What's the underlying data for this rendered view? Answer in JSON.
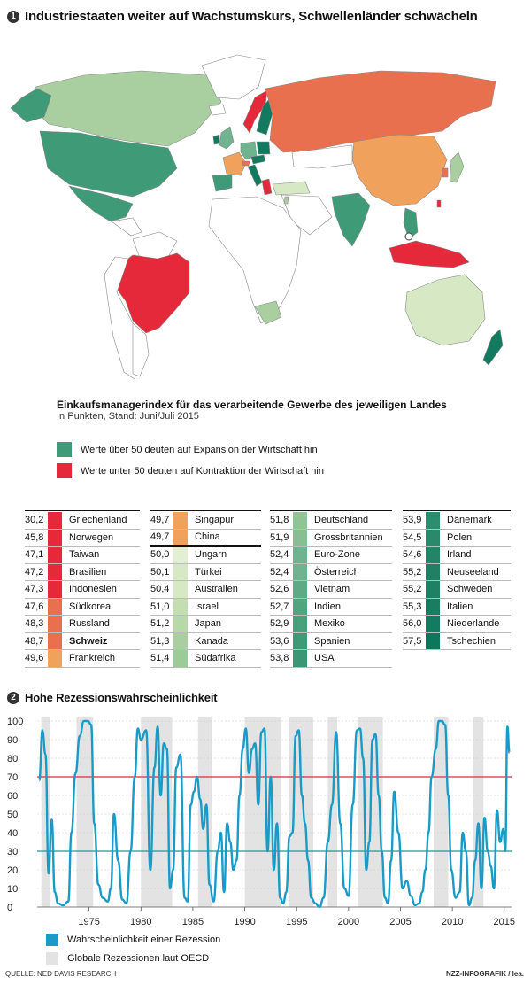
{
  "section1": {
    "number": "1",
    "title": "Industriestaaten weiter auf Wachstumskurs, Schwellenländer schwächeln"
  },
  "map": {
    "colors": {
      "red": "#e5283a",
      "red_orange": "#e9704f",
      "orange": "#f0a25d",
      "light": "#d7e8c4",
      "light_green": "#a9cfa0",
      "mid_green": "#6eb48f",
      "green": "#3f9a78",
      "dark_green": "#127a5e",
      "neutral": "#ffffff",
      "border": "#8a8a8a"
    }
  },
  "index_title": "Einkaufsmanagerindex für das verarbeitende Gewerbe des jeweiligen Landes",
  "index_subtitle": "In Punkten, Stand: Juni/Juli 2015",
  "legend": {
    "expansion": {
      "label": "Werte über 50 deuten auf Expansion der Wirtschaft hin",
      "color": "#3f9a78"
    },
    "contraction": {
      "label": "Werte unter 50 deuten auf Kontraktion der Wirtschaft hin",
      "color": "#e5283a"
    }
  },
  "table": {
    "columns": [
      [
        {
          "value": "30,2",
          "name": "Griechenland",
          "color": "#e5283a"
        },
        {
          "value": "45,8",
          "name": "Norwegen",
          "color": "#e5283a"
        },
        {
          "value": "47,1",
          "name": "Taiwan",
          "color": "#e5283a"
        },
        {
          "value": "47,2",
          "name": "Brasilien",
          "color": "#e5283a"
        },
        {
          "value": "47,3",
          "name": "Indonesien",
          "color": "#e5283a"
        },
        {
          "value": "47,6",
          "name": "Südkorea",
          "color": "#e9704f"
        },
        {
          "value": "48,3",
          "name": "Russland",
          "color": "#e9704f"
        },
        {
          "value": "48,7",
          "name": "Schweiz",
          "color": "#e9704f",
          "bold": true
        },
        {
          "value": "49,6",
          "name": "Frankreich",
          "color": "#f0a25d"
        }
      ],
      [
        {
          "value": "49,7",
          "name": "Singapur",
          "color": "#f0a25d"
        },
        {
          "value": "49,7",
          "name": "China",
          "color": "#f0a25d",
          "thick": true
        },
        {
          "value": "50,0",
          "name": "Ungarn",
          "color": "#e3efd3"
        },
        {
          "value": "50,1",
          "name": "Türkei",
          "color": "#d7e8c4"
        },
        {
          "value": "50,4",
          "name": "Australien",
          "color": "#d7e8c4"
        },
        {
          "value": "51,0",
          "name": "Israel",
          "color": "#c3dfb1"
        },
        {
          "value": "51,2",
          "name": "Japan",
          "color": "#b7d8a8"
        },
        {
          "value": "51,3",
          "name": "Kanada",
          "color": "#a9cfa0"
        },
        {
          "value": "51,4",
          "name": "Südafrika",
          "color": "#9dcb98"
        }
      ],
      [
        {
          "value": "51,8",
          "name": "Deutschland",
          "color": "#8fc494"
        },
        {
          "value": "51,9",
          "name": "Grossbritannien",
          "color": "#86bf91"
        },
        {
          "value": "52,4",
          "name": "Euro-Zone",
          "color": "#6eb48f"
        },
        {
          "value": "52,4",
          "name": "Österreich",
          "color": "#6eb48f"
        },
        {
          "value": "52,6",
          "name": "Vietnam",
          "color": "#5faa86"
        },
        {
          "value": "52,7",
          "name": "Indien",
          "color": "#52a47f"
        },
        {
          "value": "52,9",
          "name": "Mexiko",
          "color": "#4a9f7c"
        },
        {
          "value": "53,6",
          "name": "Spanien",
          "color": "#3f9a78"
        },
        {
          "value": "53,8",
          "name": "USA",
          "color": "#3a9675"
        }
      ],
      [
        {
          "value": "53,9",
          "name": "Dänemark",
          "color": "#2f8d6f"
        },
        {
          "value": "54,5",
          "name": "Polen",
          "color": "#2a886b"
        },
        {
          "value": "54,6",
          "name": "Irland",
          "color": "#248468"
        },
        {
          "value": "55,2",
          "name": "Neuseeland",
          "color": "#1f8064"
        },
        {
          "value": "55,2",
          "name": "Schweden",
          "color": "#1f8064"
        },
        {
          "value": "55,3",
          "name": "Italien",
          "color": "#1a7d61"
        },
        {
          "value": "56,0",
          "name": "Niederlande",
          "color": "#157a5f"
        },
        {
          "value": "57,5",
          "name": "Tschechien",
          "color": "#0f755b"
        }
      ]
    ]
  },
  "section2": {
    "number": "2",
    "title": "Hohe Rezessionswahrscheinlichkeit"
  },
  "chart_data": {
    "type": "line",
    "xlim": [
      1970,
      2015.7
    ],
    "ylim": [
      0,
      100
    ],
    "yticks": [
      "0",
      "10",
      "20",
      "30",
      "40",
      "50",
      "60",
      "70",
      "80",
      "90",
      "100"
    ],
    "xticks": [
      "1975",
      "1980",
      "1985",
      "1990",
      "1995",
      "2000",
      "2005",
      "2010",
      "2015"
    ],
    "hlines": [
      {
        "y": 70,
        "color": "#e5283a"
      },
      {
        "y": 30,
        "color": "#1a9b8c"
      }
    ],
    "recessions": [
      [
        1970.4,
        1971.2
      ],
      [
        1973.8,
        1975.4
      ],
      [
        1980.0,
        1983.0
      ],
      [
        1985.5,
        1986.8
      ],
      [
        1990.0,
        1993.5
      ],
      [
        1994.3,
        1996.6
      ],
      [
        1998.0,
        1998.9
      ],
      [
        2000.9,
        2003.3
      ],
      [
        2008.2,
        2009.6
      ],
      [
        2012.0,
        2013.0
      ]
    ],
    "series": [
      {
        "name": "Wahrscheinlichkeit einer Rezession",
        "color": "#1a9bc7",
        "x": [
          1970.2,
          1970.5,
          1970.8,
          1971.1,
          1971.4,
          1971.7,
          1972.0,
          1972.5,
          1973.0,
          1973.3,
          1973.7,
          1974.1,
          1974.5,
          1974.9,
          1975.2,
          1975.5,
          1975.9,
          1976.3,
          1976.8,
          1977.1,
          1977.4,
          1977.8,
          1978.2,
          1978.6,
          1979.0,
          1979.4,
          1979.7,
          1980.0,
          1980.5,
          1980.9,
          1981.3,
          1981.6,
          1981.9,
          1982.2,
          1982.5,
          1982.8,
          1983.1,
          1983.4,
          1983.8,
          1984.2,
          1984.5,
          1984.8,
          1985.1,
          1985.4,
          1985.7,
          1986.0,
          1986.3,
          1986.6,
          1987.0,
          1987.4,
          1987.7,
          1988.0,
          1988.3,
          1988.6,
          1988.9,
          1989.2,
          1989.5,
          1989.8,
          1990.1,
          1990.4,
          1990.7,
          1991.0,
          1991.3,
          1991.6,
          1991.9,
          1992.2,
          1992.5,
          1992.8,
          1993.1,
          1993.4,
          1993.7,
          1994.0,
          1994.3,
          1994.6,
          1994.9,
          1995.2,
          1995.5,
          1995.8,
          1996.1,
          1996.4,
          1996.8,
          1997.2,
          1997.6,
          1998.0,
          1998.4,
          1998.8,
          1999.2,
          1999.6,
          2000.0,
          2000.4,
          2000.8,
          2001.1,
          2001.4,
          2001.7,
          2002.0,
          2002.3,
          2002.6,
          2002.9,
          2003.2,
          2003.5,
          2003.8,
          2004.1,
          2004.4,
          2004.8,
          2005.2,
          2005.6,
          2006.0,
          2006.4,
          2006.8,
          2007.1,
          2007.4,
          2007.7,
          2008.0,
          2008.4,
          2008.7,
          2009.0,
          2009.3,
          2009.6,
          2009.9,
          2010.3,
          2010.7,
          2011.0,
          2011.3,
          2011.6,
          2011.9,
          2012.2,
          2012.5,
          2012.8,
          2013.1,
          2013.4,
          2013.7,
          2014.0,
          2014.3,
          2014.6,
          2014.9,
          2015.1,
          2015.3,
          2015.5
        ],
        "values": [
          68,
          95,
          82,
          18,
          47,
          8,
          2,
          1,
          3,
          40,
          72,
          92,
          100,
          100,
          98,
          45,
          12,
          5,
          3,
          10,
          50,
          25,
          4,
          2,
          30,
          70,
          96,
          90,
          95,
          20,
          75,
          97,
          60,
          88,
          85,
          10,
          20,
          75,
          82,
          5,
          3,
          55,
          62,
          70,
          58,
          42,
          55,
          12,
          3,
          30,
          40,
          8,
          45,
          35,
          20,
          25,
          60,
          85,
          96,
          72,
          85,
          88,
          55,
          94,
          96,
          30,
          70,
          20,
          45,
          5,
          2,
          8,
          38,
          40,
          92,
          95,
          60,
          45,
          25,
          5,
          2,
          0,
          5,
          35,
          55,
          94,
          45,
          10,
          6,
          55,
          95,
          96,
          80,
          20,
          35,
          90,
          93,
          60,
          30,
          5,
          2,
          25,
          62,
          40,
          10,
          14,
          6,
          1,
          2,
          8,
          20,
          40,
          70,
          85,
          100,
          100,
          98,
          60,
          20,
          5,
          8,
          40,
          30,
          1,
          5,
          25,
          45,
          10,
          48,
          30,
          22,
          10,
          52,
          35,
          42,
          30,
          97,
          83
        ]
      }
    ],
    "legend": [
      {
        "label": "Wahrscheinlichkeit einer Rezession",
        "color": "#1a9bc7"
      },
      {
        "label": "Globale Rezessionen laut OECD",
        "color": "#e3e3e3"
      }
    ]
  },
  "source": "QUELLE: NED DAVIS RESEARCH",
  "credit": "NZZ-INFOGRAFIK / lea."
}
